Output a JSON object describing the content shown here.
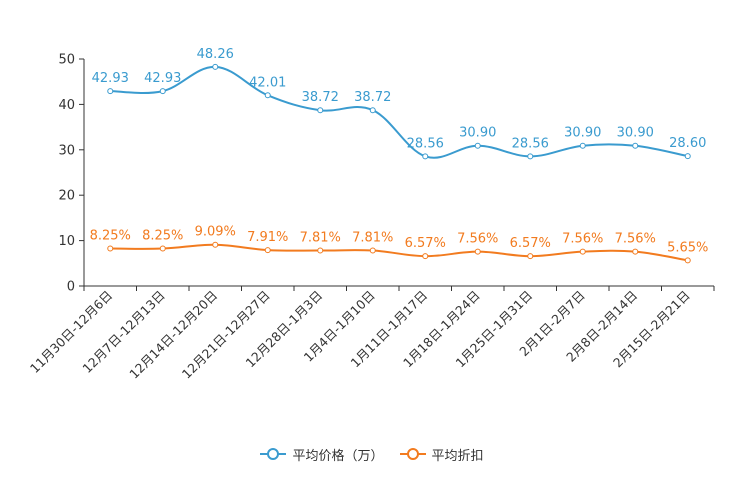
{
  "chart_data": {
    "type": "line",
    "title": "",
    "xlabel": "",
    "ylabel": "",
    "ylim": [
      0,
      50
    ],
    "yticks": [
      0,
      10,
      20,
      30,
      40,
      50
    ],
    "categories": [
      "11月30日-12月6日",
      "12月7日-12月13日",
      "12月14日-12月20日",
      "12月21日-12月27日",
      "12月28日-1月3日",
      "1月4日-1月10日",
      "1月11日-1月17日",
      "1月18日-1月24日",
      "1月25日-1月31日",
      "2月1日-2月7日",
      "2月8日-2月14日",
      "2月15日-2月21日"
    ],
    "series": [
      {
        "name": "平均价格（万）",
        "color": "#3a9bcf",
        "values": [
          42.93,
          42.93,
          48.26,
          42.01,
          38.72,
          38.72,
          28.56,
          30.9,
          28.56,
          30.9,
          30.9,
          28.6
        ],
        "labels": [
          "42.93",
          "42.93",
          "48.26",
          "42.01",
          "38.72",
          "38.72",
          "28.56",
          "30.90",
          "28.56",
          "30.90",
          "30.90",
          "28.60"
        ]
      },
      {
        "name": "平均折扣",
        "color": "#f27b1f",
        "values": [
          8.25,
          8.25,
          9.09,
          7.91,
          7.81,
          7.81,
          6.57,
          7.56,
          6.57,
          7.56,
          7.56,
          5.65
        ],
        "labels": [
          "8.25%",
          "8.25%",
          "9.09%",
          "7.91%",
          "7.81%",
          "7.81%",
          "6.57%",
          "7.56%",
          "6.57%",
          "7.56%",
          "7.56%",
          "5.65%"
        ]
      }
    ],
    "grid": false,
    "legend_position": "bottom-center"
  },
  "legend": {
    "price_label": "平均价格（万）",
    "discount_label": "平均折扣"
  }
}
